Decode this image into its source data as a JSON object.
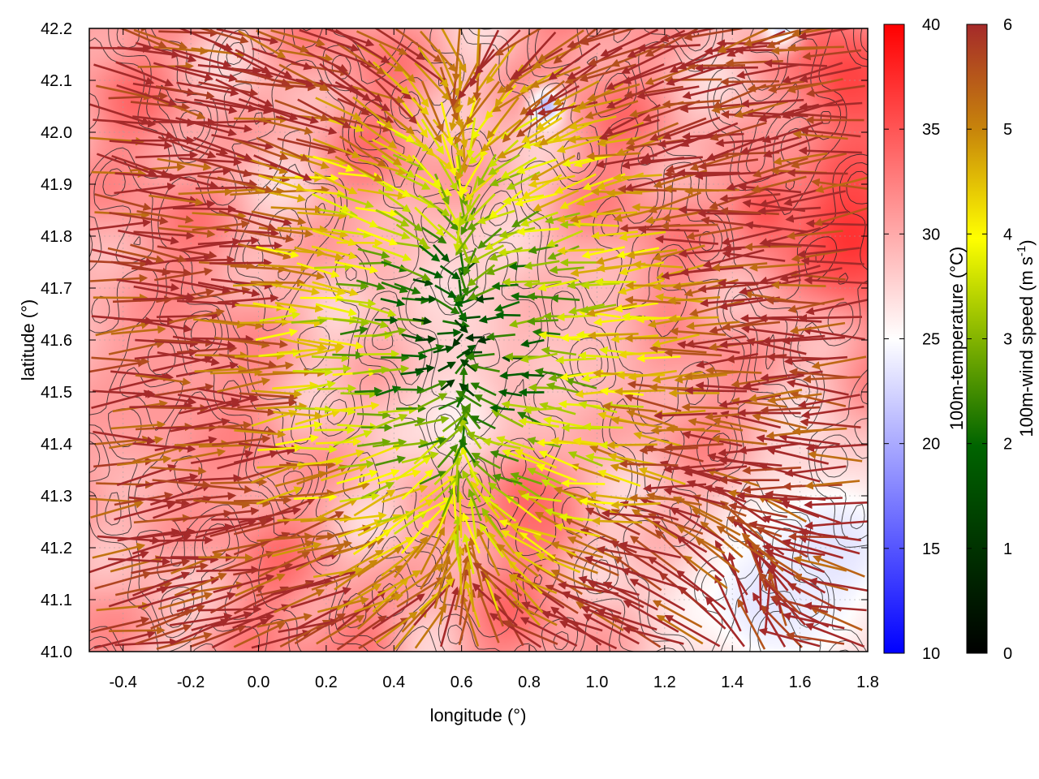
{
  "chart_data": {
    "type": "heatmap",
    "subtype": "vector-field-over-temperature-map",
    "title": "",
    "xlabel": "longitude (°)",
    "ylabel": "latitude (°)",
    "xlim": [
      -0.5,
      1.8
    ],
    "ylim": [
      41.0,
      42.2
    ],
    "x_ticks": [
      "-0.4",
      "-0.2",
      "0.0",
      "0.2",
      "0.4",
      "0.6",
      "0.8",
      "1.0",
      "1.2",
      "1.4",
      "1.6",
      "1.8"
    ],
    "x_tick_values": [
      -0.4,
      -0.2,
      0.0,
      0.2,
      0.4,
      0.6,
      0.8,
      1.0,
      1.2,
      1.4,
      1.6,
      1.8
    ],
    "y_ticks": [
      "41.0",
      "41.1",
      "41.2",
      "41.3",
      "41.4",
      "41.5",
      "41.6",
      "41.7",
      "41.8",
      "41.9",
      "42.0",
      "42.1",
      "42.2"
    ],
    "y_tick_values": [
      41.0,
      41.1,
      41.2,
      41.3,
      41.4,
      41.5,
      41.6,
      41.7,
      41.8,
      41.9,
      42.0,
      42.1,
      42.2
    ],
    "grid": true,
    "temperature_colorbar": {
      "label": "100m-temperature (°C)",
      "range": [
        10,
        40
      ],
      "ticks": [
        "10",
        "15",
        "20",
        "25",
        "30",
        "35",
        "40"
      ],
      "tick_values": [
        10,
        15,
        20,
        25,
        30,
        35,
        40
      ],
      "colors": [
        "#0000ff",
        "#ffffff",
        "#ff0000"
      ]
    },
    "wind_colorbar": {
      "label_main": "100m-wind speed (m s",
      "label_sup": "-1",
      "label_end": ")",
      "range": [
        0,
        6
      ],
      "ticks": [
        "0",
        "1",
        "2",
        "3",
        "4",
        "5",
        "6"
      ],
      "tick_values": [
        0,
        1,
        2,
        3,
        4,
        5,
        6
      ],
      "colors": [
        "#000000",
        "#006400",
        "#ffff00",
        "#c8860a",
        "#a52a2a"
      ]
    },
    "temperature_features": [
      {
        "lon": 0.6,
        "lat": 41.45,
        "t": 25.5,
        "r": 0.18
      },
      {
        "lon": 0.55,
        "lat": 41.7,
        "t": 27,
        "r": 0.22
      },
      {
        "lon": 1.5,
        "lat": 41.1,
        "t": 23.5,
        "r": 0.3
      },
      {
        "lon": 1.7,
        "lat": 41.2,
        "t": 23.5,
        "r": 0.2
      },
      {
        "lon": 0.85,
        "lat": 42.05,
        "t": 21,
        "r": 0.05
      },
      {
        "lon": 1.55,
        "lat": 42.2,
        "t": 22,
        "r": 0.06
      },
      {
        "lon": 1.75,
        "lat": 41.8,
        "t": 37,
        "r": 0.18
      },
      {
        "lon": 1.75,
        "lat": 42.1,
        "t": 36,
        "r": 0.15
      },
      {
        "lon": 1.5,
        "lat": 41.85,
        "t": 35,
        "r": 0.12
      },
      {
        "lon": 0.8,
        "lat": 41.3,
        "t": 34,
        "r": 0.12
      },
      {
        "lon": 0.3,
        "lat": 41.02,
        "t": 33,
        "r": 0.12
      },
      {
        "lon": -0.3,
        "lat": 41.5,
        "t": 31,
        "r": 0.3
      },
      {
        "lon": 1.0,
        "lat": 41.6,
        "t": 29,
        "r": 0.2
      }
    ],
    "wind_vectors": {
      "convergence_center": {
        "lon": 0.6,
        "lat": 41.6
      },
      "divergence_center": {
        "lon": 1.45,
        "lat": 41.05
      },
      "grid_step_lon": 0.06,
      "grid_step_lat": 0.035,
      "speed_range": [
        1,
        6
      ]
    },
    "terrain_contours": {
      "levels": [
        0.45,
        0.6,
        0.75,
        0.9
      ],
      "color": "#222222"
    }
  }
}
